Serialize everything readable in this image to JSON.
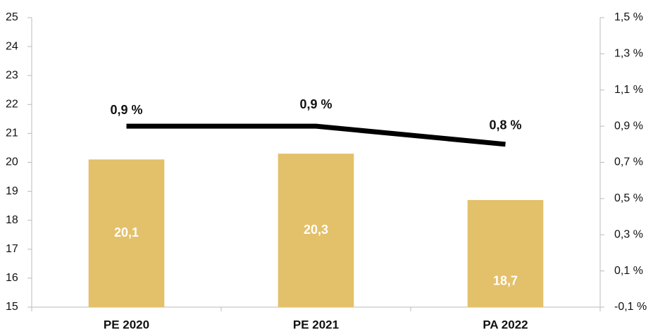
{
  "chart_data": {
    "type": "combo",
    "categories": [
      "PE 2020",
      "PE 2021",
      "PA 2022"
    ],
    "series": [
      {
        "type": "bar",
        "color": "#e3c06a",
        "values": [
          20.1,
          20.3,
          18.7
        ],
        "value_labels": [
          "20,1",
          "20,3",
          "18,7"
        ]
      },
      {
        "type": "line",
        "axis": "y2",
        "color": "#000000",
        "values": [
          0.9,
          0.9,
          0.8
        ],
        "value_labels": [
          "0,9 %",
          "0,9 %",
          "0,8 %"
        ]
      }
    ],
    "ylim": [
      15,
      25
    ],
    "yticks": [
      15,
      16,
      17,
      18,
      19,
      20,
      21,
      22,
      23,
      24,
      25
    ],
    "y2lim": [
      -0.1,
      1.5
    ],
    "y2ticks": [
      {
        "value": -0.1,
        "label": "-0,1 %"
      },
      {
        "value": 0.1,
        "label": "0,1 %"
      },
      {
        "value": 0.3,
        "label": "0,3 %"
      },
      {
        "value": 0.5,
        "label": "0,5 %"
      },
      {
        "value": 0.7,
        "label": "0,7 %"
      },
      {
        "value": 0.9,
        "label": "0,9 %"
      },
      {
        "value": 1.1,
        "label": "1,1 %"
      },
      {
        "value": 1.3,
        "label": "1,3 %"
      },
      {
        "value": 1.5,
        "label": "1,5 %"
      }
    ]
  }
}
